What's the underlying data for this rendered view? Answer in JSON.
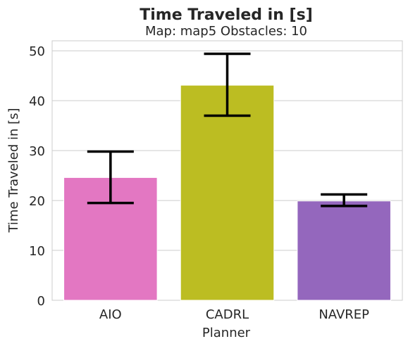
{
  "chart_data": {
    "type": "bar",
    "title": "Time Traveled in [s]",
    "subtitle": "Map: map5 Obstacles: 10",
    "xlabel": "Planner",
    "ylabel": "Time Traveled in [s]",
    "categories": [
      "AIO",
      "CADRL",
      "NAVREP"
    ],
    "values": [
      24.6,
      43.1,
      19.9
    ],
    "error_low": [
      19.5,
      37.0,
      18.9
    ],
    "error_high": [
      29.8,
      49.4,
      21.2
    ],
    "bar_colors": [
      "#e377c2",
      "#bcbd22",
      "#9467bd"
    ],
    "ylim": [
      0,
      52
    ],
    "yticks": [
      0,
      10,
      20,
      30,
      40,
      50
    ],
    "grid": "horizontal"
  }
}
